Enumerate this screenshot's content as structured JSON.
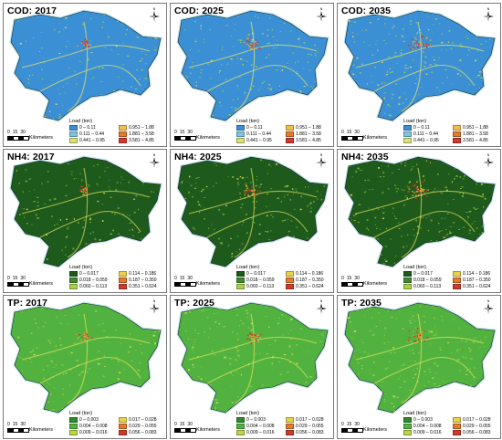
{
  "scale": {
    "numbers": [
      "0",
      "15",
      "30"
    ],
    "unit": "Kilometers"
  },
  "legend_title": "Load (ton)",
  "north_label": "N",
  "rows": [
    {
      "pollutant": "COD",
      "background": "#3b8fd4",
      "hotspot_colors": [
        "#8ccf5a",
        "#e4e36b",
        "#f1a33a",
        "#d6352e"
      ],
      "legend": [
        {
          "label": "0 – 0.11",
          "color": "#3b8fd4"
        },
        {
          "label": "0.951 – 1.88",
          "color": "#f0c04a"
        },
        {
          "label": "0.111 – 0.44",
          "color": "#7fc5e0"
        },
        {
          "label": "1.881 – 3.58",
          "color": "#e8782e"
        },
        {
          "label": "0.441 – 0.95",
          "color": "#d8e27a"
        },
        {
          "label": "3.581 – 4.85",
          "color": "#d6352e"
        }
      ],
      "panels": [
        {
          "title": "COD: 2017"
        },
        {
          "title": "COD: 2025"
        },
        {
          "title": "COD: 2035"
        }
      ]
    },
    {
      "pollutant": "NH4",
      "background": "#1f5a1d",
      "hotspot_colors": [
        "#7ab83c",
        "#d8e05a",
        "#e9a23a",
        "#d03a2a"
      ],
      "legend": [
        {
          "label": "0 – 0.017",
          "color": "#1f5a1d"
        },
        {
          "label": "0.114 – 0.186",
          "color": "#e8d24a"
        },
        {
          "label": "0.018 – 0.059",
          "color": "#3f8a2f"
        },
        {
          "label": "0.187 – 0.350",
          "color": "#e8782e"
        },
        {
          "label": "0.060 – 0.113",
          "color": "#a9d04a"
        },
        {
          "label": "0.351 – 0.624",
          "color": "#d03a2a"
        }
      ],
      "panels": [
        {
          "title": "NH4: 2017"
        },
        {
          "title": "NH4: 2025"
        },
        {
          "title": "NH4: 2035"
        }
      ]
    },
    {
      "pollutant": "TP",
      "background": "#52b240",
      "hotspot_colors": [
        "#9bd04a",
        "#dde45a",
        "#e9a23a",
        "#d03a2a"
      ],
      "legend": [
        {
          "label": "0 – 0.003",
          "color": "#2f8a2a"
        },
        {
          "label": "0.017 – 0.028",
          "color": "#e8d24a"
        },
        {
          "label": "0.004 – 0.008",
          "color": "#52b240"
        },
        {
          "label": "0.029 – 0.055",
          "color": "#e8782e"
        },
        {
          "label": "0.009 – 0.016",
          "color": "#b8d84a"
        },
        {
          "label": "0.056 – 0.083",
          "color": "#d03a2a"
        }
      ],
      "panels": [
        {
          "title": "TP: 2017"
        },
        {
          "title": "TP: 2025"
        },
        {
          "title": "TP: 2035"
        }
      ]
    }
  ]
}
